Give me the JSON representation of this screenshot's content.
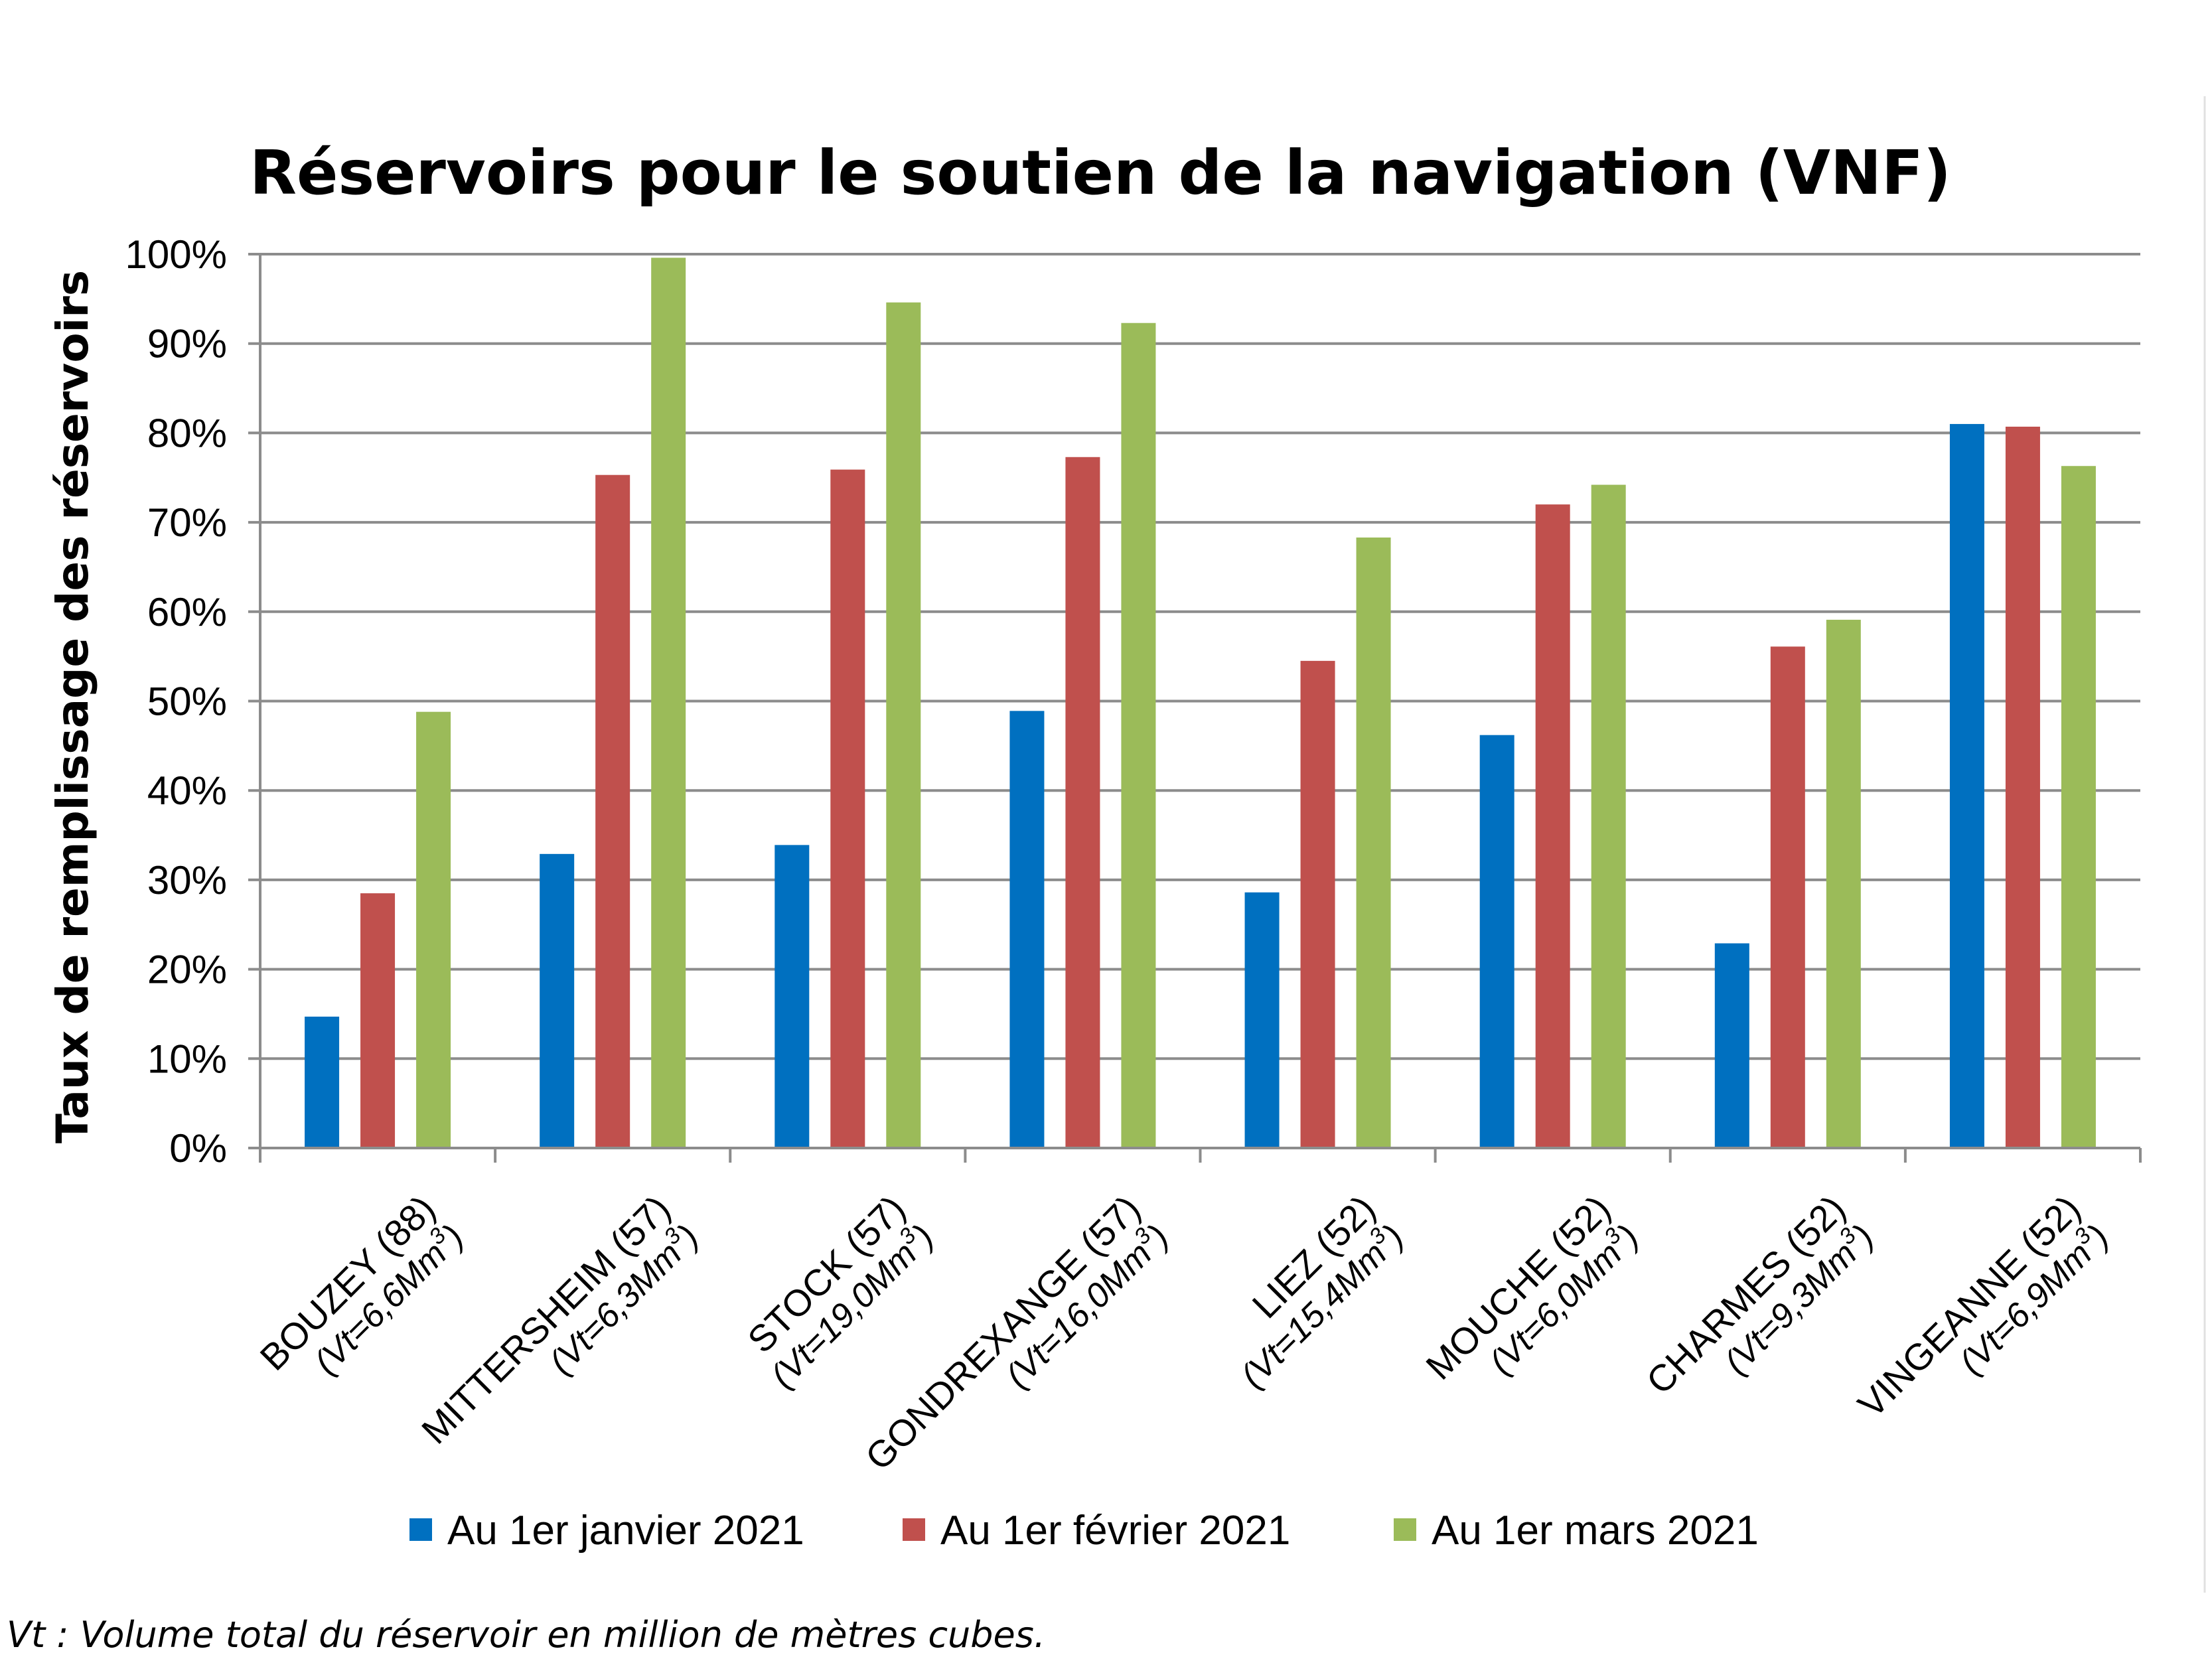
{
  "chart_data": {
    "type": "bar",
    "title": "Réservoirs pour le soutien de la navigation (VNF)",
    "ylabel": "Taux de remplissage des réservoirs",
    "xlabel": "",
    "ylim": [
      0,
      100
    ],
    "y_ticks": [
      "0%",
      "10%",
      "20%",
      "30%",
      "40%",
      "50%",
      "60%",
      "70%",
      "80%",
      "90%",
      "100%"
    ],
    "grid": true,
    "legend_position": "bottom",
    "categories": [
      {
        "name": "BOUZEY (88)",
        "volume_prefix": "(Vt=6,6Mm",
        "volume_suffix": ")"
      },
      {
        "name": "MITTERSHEIM (57)",
        "volume_prefix": "(Vt=6,3Mm",
        "volume_suffix": ")"
      },
      {
        "name": "STOCK (57)",
        "volume_prefix": "(Vt=19,0Mm",
        "volume_suffix": ")"
      },
      {
        "name": "GONDREXANGE (57)",
        "volume_prefix": "(Vt=16,0Mm",
        "volume_suffix": ")"
      },
      {
        "name": "LIEZ (52)",
        "volume_prefix": "(Vt=15,4Mm",
        "volume_suffix": ")"
      },
      {
        "name": "MOUCHE (52)",
        "volume_prefix": "(Vt=6,0Mm",
        "volume_suffix": ")"
      },
      {
        "name": "CHARMES (52)",
        "volume_prefix": "(Vt=9,3Mm",
        "volume_suffix": ")"
      },
      {
        "name": "VINGEANNE (52)",
        "volume_prefix": "(Vt=6,9Mm",
        "volume_suffix": ")"
      }
    ],
    "volume_superscript": "3",
    "series": [
      {
        "name": "Au 1er janvier 2021",
        "color": "#0070c0",
        "values": [
          14.7,
          32.9,
          33.9,
          48.9,
          28.6,
          46.2,
          22.9,
          81.0
        ]
      },
      {
        "name": "Au 1er février 2021",
        "color": "#c0504d",
        "values": [
          28.5,
          75.3,
          75.9,
          77.3,
          54.5,
          72.0,
          56.1,
          80.7
        ]
      },
      {
        "name": "Au 1er mars 2021",
        "color": "#9bbb59",
        "values": [
          48.8,
          99.6,
          94.6,
          92.3,
          68.3,
          74.2,
          59.1,
          76.3
        ]
      }
    ],
    "footnote": "Vt : Volume total du réservoir en million de mètres cubes."
  }
}
